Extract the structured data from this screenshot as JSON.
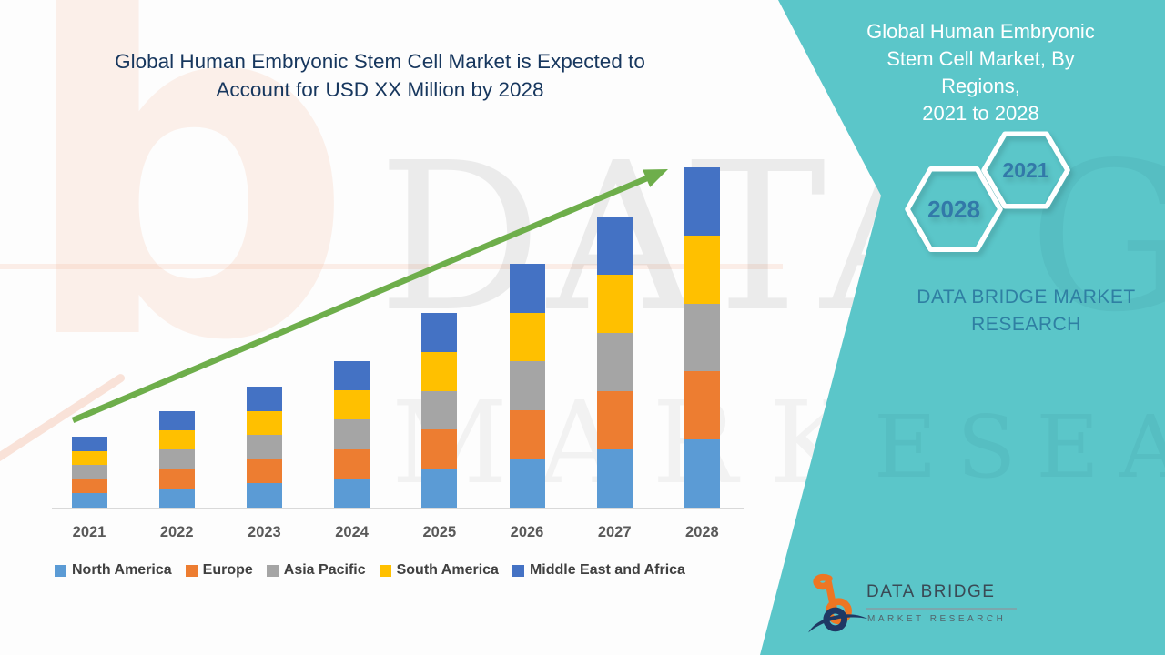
{
  "main_title_lines": [
    "Global Human Embryonic Stem Cell Market is Expected to",
    "Account for USD XX Million by 2028"
  ],
  "side_panel": {
    "title_lines": [
      "Global Human Embryonic",
      "Stem Cell Market, By Regions,",
      "2021 to 2028"
    ],
    "badges": {
      "start_year": "2021",
      "end_year": "2028"
    },
    "brand_lines": [
      "DATA BRIDGE MARKET",
      "RESEARCH"
    ],
    "panel_color": "#5BC6C9",
    "badge_text_color": "#3279A9"
  },
  "logo": {
    "name": "DATA BRIDGE",
    "subtitle": "MARKET RESEARCH"
  },
  "watermark": {
    "letter": "b",
    "big_text": "DATA B",
    "secondary_text": "MARKET R",
    "teal_text_1": "GE",
    "teal_text_2": "ESEARCH"
  },
  "chart_data": {
    "type": "bar",
    "stacked": true,
    "title": "Global Human Embryonic Stem Cell Market, By Regions, 2021 to 2028",
    "xlabel": "",
    "ylabel": "",
    "values_note": "Y axis not shown; actual figures masked as 'USD XX Million'. Values are relative units read from bar pixel heights; each year splits about equally across the five regions.",
    "categories": [
      "2021",
      "2022",
      "2023",
      "2024",
      "2025",
      "2026",
      "2027",
      "2028"
    ],
    "totals": [
      78,
      106,
      133,
      161,
      214,
      268,
      320,
      374
    ],
    "series": [
      {
        "key": "north-america",
        "name": "North America",
        "color": "#5B9BD5",
        "values": [
          15.6,
          21.2,
          26.6,
          32.2,
          42.8,
          53.6,
          64,
          74.8
        ]
      },
      {
        "key": "europe",
        "name": "Europe",
        "color": "#ED7D31",
        "values": [
          15.6,
          21.2,
          26.6,
          32.2,
          42.8,
          53.6,
          64,
          74.8
        ]
      },
      {
        "key": "asia-pacific",
        "name": "Asia Pacific",
        "color": "#A5A5A5",
        "values": [
          15.6,
          21.2,
          26.6,
          32.2,
          42.8,
          53.6,
          64,
          74.8
        ]
      },
      {
        "key": "south-america",
        "name": "South America",
        "color": "#FFC000",
        "values": [
          15.6,
          21.2,
          26.6,
          32.2,
          42.8,
          53.6,
          64,
          74.8
        ]
      },
      {
        "key": "middle-east-africa",
        "name": "Middle East and Africa",
        "color": "#4472C4",
        "values": [
          15.6,
          21.2,
          26.6,
          32.2,
          42.8,
          53.6,
          64,
          74.8
        ]
      }
    ],
    "legend_position": "bottom",
    "grid": false,
    "trend_arrow": {
      "present": true,
      "color": "#6EAE4B"
    }
  }
}
